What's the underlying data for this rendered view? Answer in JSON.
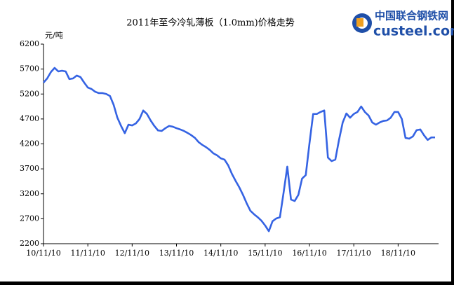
{
  "chart_data": {
    "type": "line",
    "title": "2011年至今冷轧薄板（1.0mm)价格走势",
    "y_label": "元/吨",
    "logo": {
      "name": "中国联合钢铁网",
      "site": "custeel.com"
    },
    "color": "#3563e3",
    "categories": [
      "10/11/10",
      null,
      null,
      null,
      null,
      null,
      null,
      null,
      null,
      null,
      null,
      null,
      "11/11/10",
      null,
      null,
      null,
      null,
      null,
      null,
      null,
      null,
      null,
      null,
      null,
      "12/11/10",
      null,
      null,
      null,
      null,
      null,
      null,
      null,
      null,
      null,
      null,
      null,
      "13/11/10",
      null,
      null,
      null,
      null,
      null,
      null,
      null,
      null,
      null,
      null,
      null,
      "14/11/10",
      null,
      null,
      null,
      null,
      null,
      null,
      null,
      null,
      null,
      null,
      null,
      "15/11/10",
      null,
      null,
      null,
      null,
      null,
      null,
      null,
      null,
      null,
      null,
      null,
      "16/11/10",
      null,
      null,
      null,
      null,
      null,
      null,
      null,
      null,
      null,
      null,
      null,
      "17/11/10",
      null,
      null,
      null,
      null,
      null,
      null,
      null,
      null,
      null,
      null,
      null,
      "18/11/10",
      null,
      null,
      null,
      null,
      null,
      null,
      null,
      null,
      null,
      null
    ],
    "values": [
      5428,
      5512,
      5640,
      5723,
      5653,
      5667,
      5653,
      5500,
      5512,
      5570,
      5540,
      5430,
      5330,
      5300,
      5245,
      5218,
      5218,
      5200,
      5160,
      4980,
      4725,
      4560,
      4415,
      4585,
      4570,
      4610,
      4700,
      4870,
      4800,
      4670,
      4560,
      4470,
      4460,
      4515,
      4560,
      4545,
      4515,
      4490,
      4460,
      4420,
      4375,
      4320,
      4235,
      4180,
      4135,
      4080,
      4010,
      3970,
      3910,
      3885,
      3770,
      3600,
      3460,
      3330,
      3180,
      3010,
      2860,
      2790,
      2730,
      2660,
      2565,
      2450,
      2650,
      2705,
      2730,
      3225,
      3745,
      3085,
      3055,
      3180,
      3505,
      3575,
      4210,
      4800,
      4800,
      4840,
      4870,
      3925,
      3855,
      3885,
      4280,
      4630,
      4810,
      4725,
      4800,
      4840,
      4950,
      4840,
      4770,
      4630,
      4585,
      4630,
      4660,
      4670,
      4725,
      4840,
      4840,
      4700,
      4320,
      4305,
      4350,
      4475,
      4490,
      4375,
      4280,
      4330,
      4330
    ],
    "ylim": [
      2200,
      6200
    ],
    "yticks": [
      2200,
      2700,
      3200,
      3700,
      4200,
      4700,
      5200,
      5700,
      6200
    ]
  }
}
